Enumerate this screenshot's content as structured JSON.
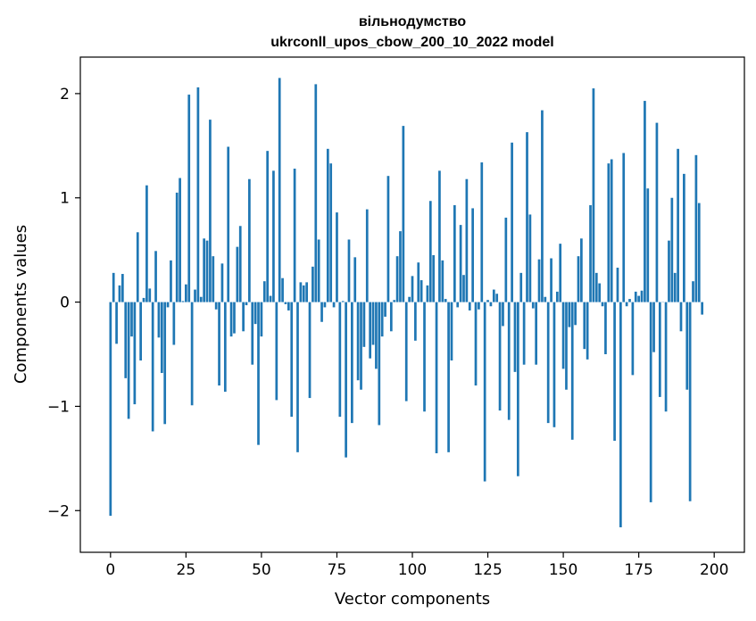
{
  "chart_data": {
    "type": "bar",
    "title_line1": "вільнодумство",
    "title_line2": "ukrconll_upos_cbow_200_10_2022 model",
    "xlabel": "Vector components",
    "ylabel": "Components values",
    "xlim": [
      -10,
      210
    ],
    "ylim": [
      -2.4,
      2.35
    ],
    "xticks": [
      0,
      25,
      50,
      75,
      100,
      125,
      150,
      175,
      200
    ],
    "xtick_labels": [
      "0",
      "25",
      "50",
      "75",
      "100",
      "125",
      "150",
      "175",
      "200"
    ],
    "yticks": [
      -2,
      -1,
      0,
      1,
      2
    ],
    "ytick_labels": [
      "−2",
      "−1",
      "0",
      "1",
      "2"
    ],
    "bar_color": "#1f77b4",
    "grid": false,
    "values": [
      -2.05,
      0.28,
      -0.4,
      0.16,
      0.27,
      -0.73,
      -1.12,
      -0.33,
      -0.98,
      0.67,
      -0.56,
      0.04,
      1.12,
      0.13,
      -1.24,
      0.49,
      -0.34,
      -0.68,
      -1.17,
      -0.05,
      0.4,
      -0.41,
      1.05,
      1.19,
      0.01,
      0.17,
      1.99,
      -0.99,
      0.12,
      2.06,
      0.05,
      0.61,
      0.59,
      1.75,
      0.44,
      -0.07,
      -0.8,
      0.37,
      -0.86,
      1.49,
      -0.33,
      -0.3,
      0.53,
      0.73,
      -0.28,
      -0.03,
      1.18,
      -0.6,
      -0.21,
      -1.37,
      -0.33,
      0.2,
      1.45,
      0.06,
      1.26,
      -0.94,
      2.15,
      0.23,
      -0.02,
      -0.08,
      -1.1,
      1.28,
      -1.44,
      0.19,
      0.16,
      0.19,
      -0.92,
      0.34,
      2.09,
      0.6,
      -0.19,
      -0.05,
      1.47,
      1.33,
      -0.05,
      0.86,
      -1.1,
      0.01,
      -1.49,
      0.6,
      -1.16,
      0.43,
      -0.75,
      -0.84,
      -0.43,
      0.89,
      -0.54,
      -0.41,
      -0.64,
      -1.18,
      -0.33,
      -0.14,
      1.21,
      -0.28,
      0.02,
      0.44,
      0.68,
      1.69,
      -0.95,
      0.05,
      0.25,
      -0.37,
      0.38,
      0.21,
      -1.05,
      0.16,
      0.97,
      0.45,
      -1.45,
      1.26,
      0.4,
      0.03,
      -1.44,
      -0.56,
      0.93,
      -0.05,
      0.74,
      0.26,
      1.18,
      -0.08,
      0.9,
      -0.8,
      -0.07,
      1.34,
      -1.72,
      0.02,
      -0.04,
      0.12,
      0.08,
      -1.04,
      -0.23,
      0.81,
      -1.13,
      1.53,
      -0.67,
      -1.67,
      0.28,
      -0.6,
      1.63,
      0.84,
      -0.06,
      -0.6,
      0.41,
      1.84,
      0.05,
      -1.16,
      0.42,
      -1.2,
      0.1,
      0.56,
      -0.64,
      -0.84,
      -0.24,
      -1.32,
      -0.22,
      0.44,
      0.61,
      -0.45,
      -0.55,
      0.93,
      2.05,
      0.28,
      0.18,
      -0.04,
      -0.5,
      1.33,
      1.37,
      -1.33,
      0.33,
      -2.16,
      1.43,
      -0.04,
      0.03,
      -0.7,
      0.1,
      0.06,
      0.11,
      1.93,
      1.09,
      -1.92,
      -0.48,
      1.72,
      -0.91,
      0.0,
      -1.05,
      0.59,
      1.0,
      0.28,
      1.47,
      -0.28,
      1.23,
      -0.84,
      -1.91,
      0.2,
      1.41,
      0.95,
      -0.12
    ]
  }
}
